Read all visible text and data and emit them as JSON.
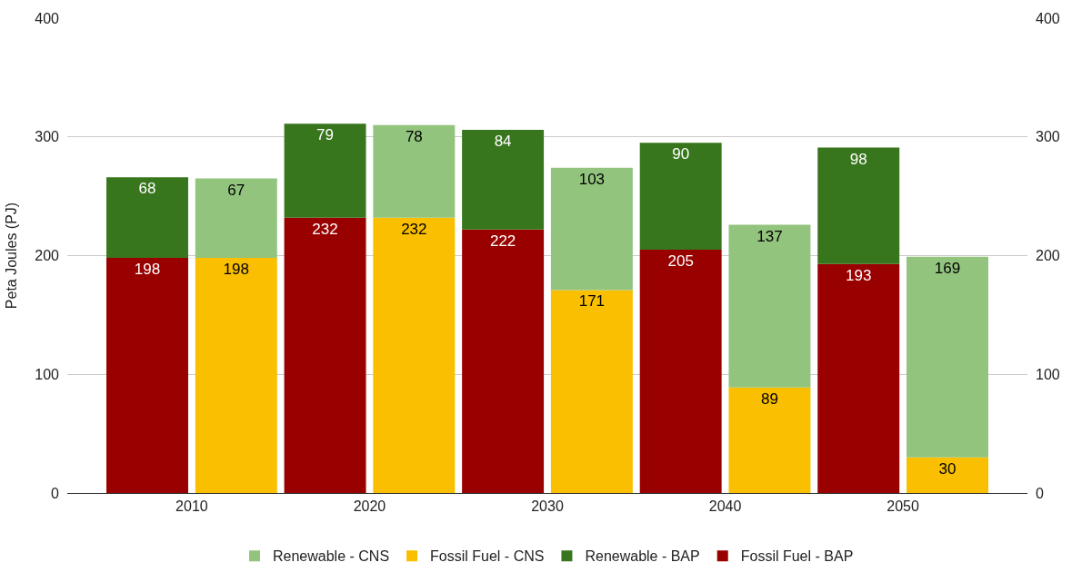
{
  "chart_data": {
    "type": "bar",
    "stacked": true,
    "ylabel": "Peta Joules (PJ)",
    "categories": [
      "2010",
      null,
      "2020",
      null,
      "2030",
      null,
      "2040",
      null,
      "2050",
      null
    ],
    "series": [
      {
        "name": "Fossil Fuel - BAP",
        "color": "#990000",
        "values": [
          198,
          null,
          232,
          null,
          222,
          null,
          205,
          null,
          193,
          null
        ]
      },
      {
        "name": "Renewable - BAP",
        "color": "#38761d",
        "values": [
          68,
          null,
          79,
          null,
          84,
          null,
          90,
          null,
          98,
          null
        ]
      },
      {
        "name": "Fossil Fuel - CNS",
        "color": "#f9bf00",
        "values": [
          null,
          198,
          null,
          232,
          null,
          171,
          null,
          89,
          null,
          30
        ]
      },
      {
        "name": "Renewable - CNS",
        "color": "#93c47d",
        "values": [
          null,
          67,
          null,
          78,
          null,
          103,
          null,
          137,
          null,
          169
        ]
      }
    ],
    "ylim": [
      0,
      400
    ],
    "yticks": [
      0,
      100,
      200,
      300,
      400
    ],
    "y2lim": [
      0,
      400
    ],
    "y2ticks": [
      0,
      100,
      200,
      300,
      400
    ],
    "data_labels": true,
    "grid": "y",
    "legend": "bottom"
  }
}
